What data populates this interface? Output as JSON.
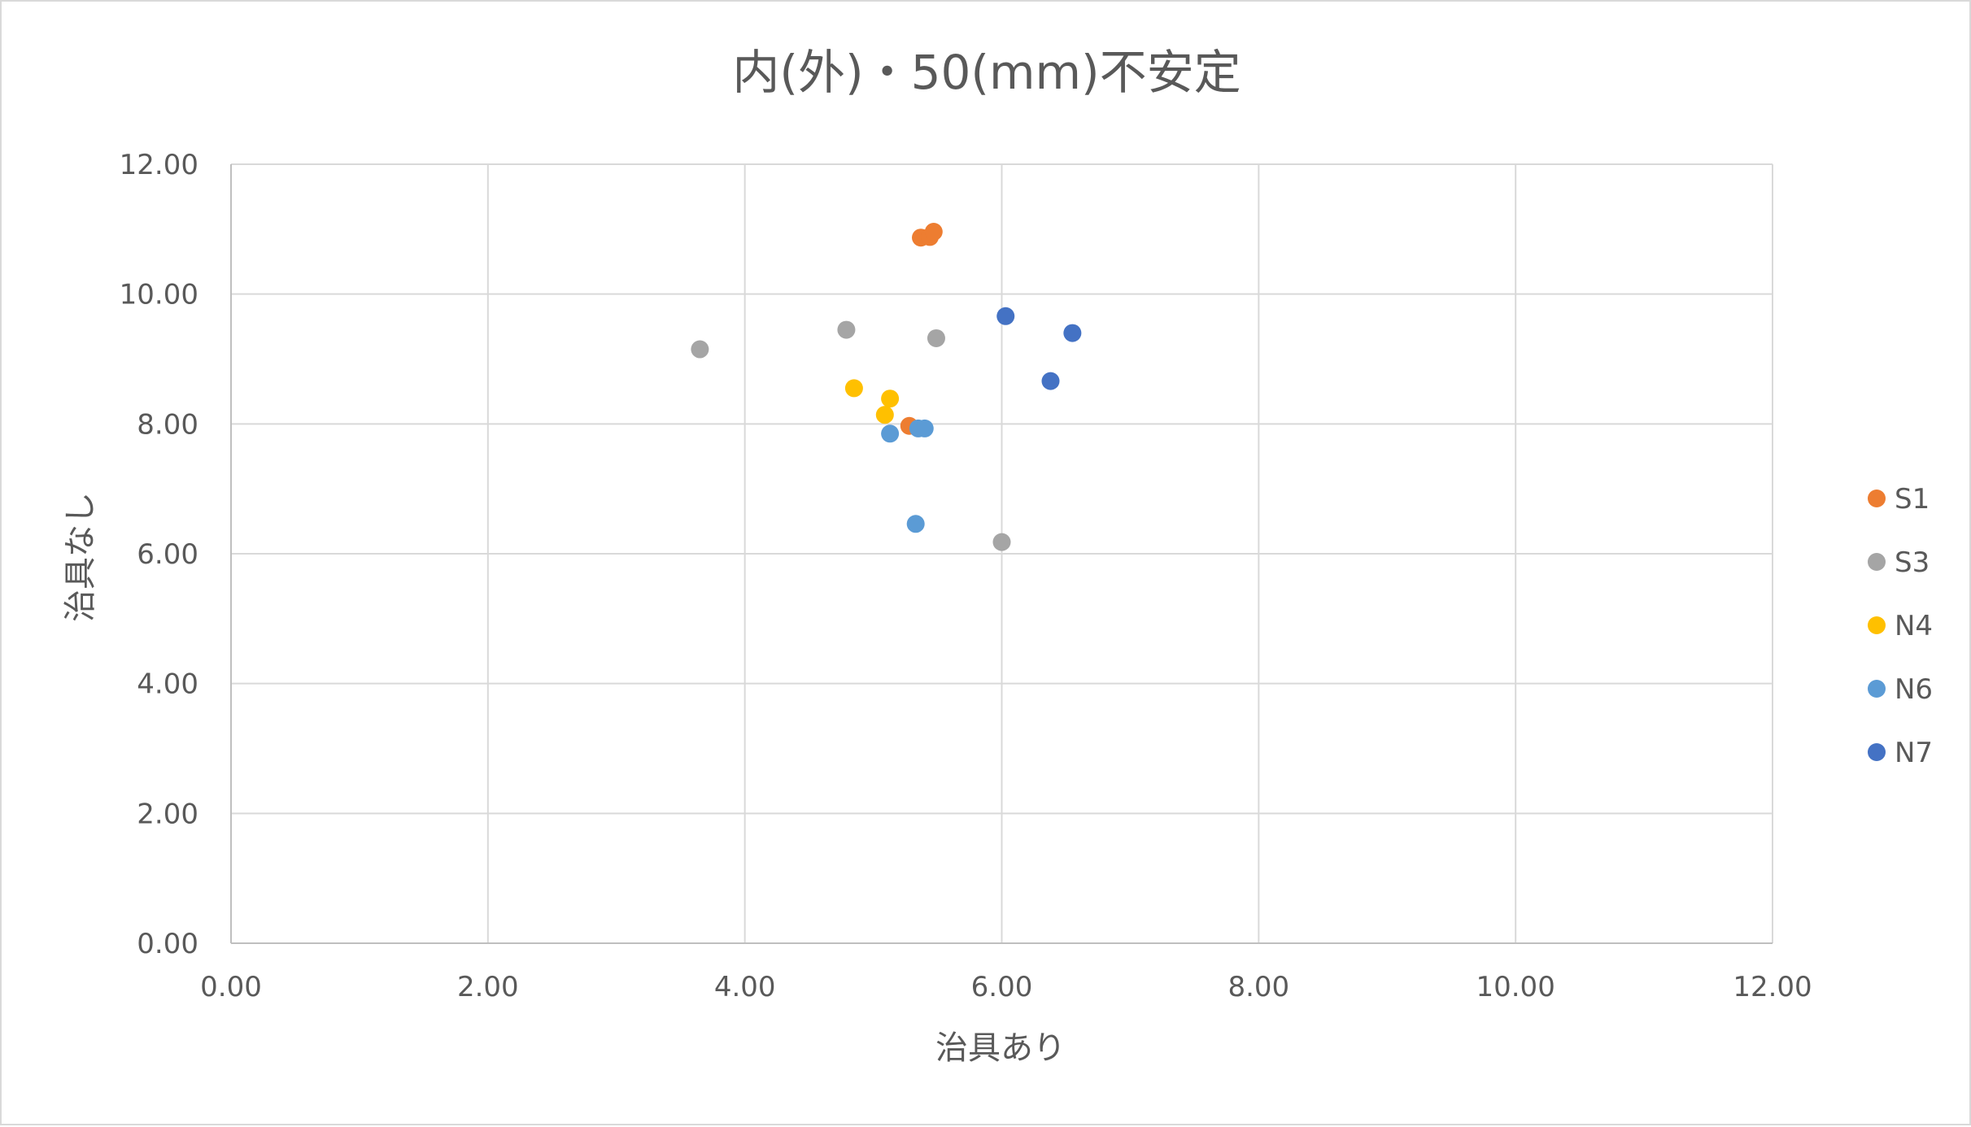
{
  "chart_data": {
    "type": "scatter",
    "title": "内(外)・50(mm)不安定",
    "xlabel": "治具あり",
    "ylabel": "治具なし",
    "xlim": [
      0,
      12
    ],
    "ylim": [
      0,
      12
    ],
    "xticks": [
      "0.00",
      "2.00",
      "4.00",
      "6.00",
      "8.00",
      "10.00",
      "12.00"
    ],
    "yticks": [
      "0.00",
      "2.00",
      "4.00",
      "6.00",
      "8.00",
      "10.00",
      "12.00"
    ],
    "grid": true,
    "legend_position": "right",
    "series": [
      {
        "name": "S1",
        "color": "#ED7D31",
        "points": [
          [
            5.37,
            10.87
          ],
          [
            5.44,
            10.88
          ],
          [
            5.47,
            10.96
          ],
          [
            5.28,
            7.97
          ]
        ]
      },
      {
        "name": "S3",
        "color": "#A5A5A5",
        "points": [
          [
            3.65,
            9.15
          ],
          [
            4.79,
            9.45
          ],
          [
            5.49,
            9.32
          ],
          [
            6.0,
            6.18
          ]
        ]
      },
      {
        "name": "N4",
        "color": "#FFC000",
        "points": [
          [
            4.85,
            8.55
          ],
          [
            5.13,
            8.39
          ],
          [
            5.09,
            8.14
          ]
        ]
      },
      {
        "name": "N6",
        "color": "#5B9BD5",
        "points": [
          [
            5.13,
            7.85
          ],
          [
            5.35,
            7.93
          ],
          [
            5.4,
            7.93
          ],
          [
            5.33,
            6.46
          ]
        ]
      },
      {
        "name": "N7",
        "color": "#4472C4",
        "points": [
          [
            6.03,
            9.66
          ],
          [
            6.55,
            9.4
          ],
          [
            6.38,
            8.66
          ]
        ]
      }
    ]
  }
}
